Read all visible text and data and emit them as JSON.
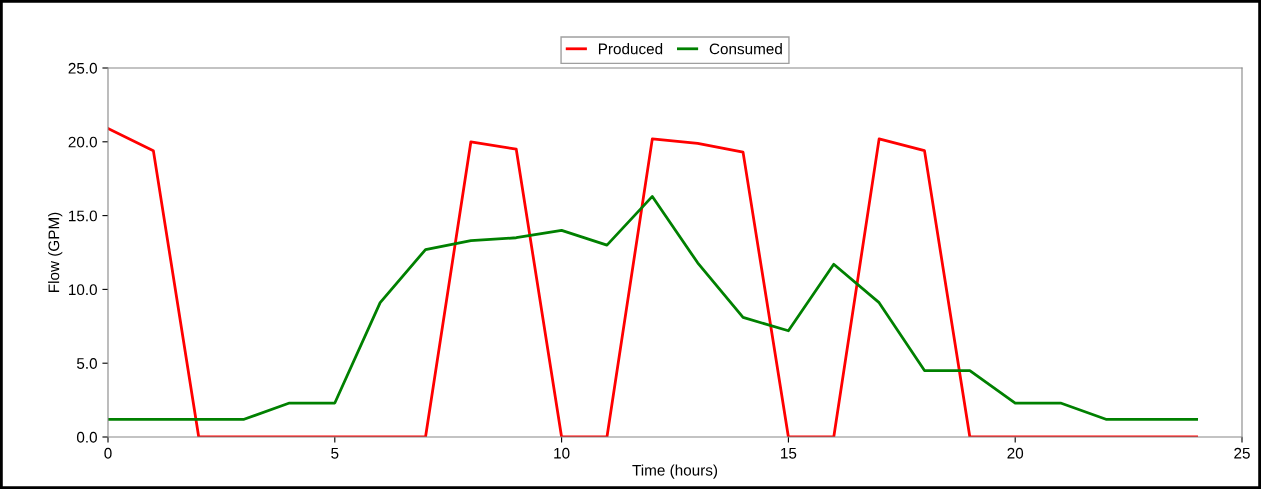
{
  "chart_data": {
    "type": "line",
    "xlabel": "Time (hours)",
    "ylabel": "Flow (GPM)",
    "x": [
      0,
      1,
      2,
      3,
      4,
      5,
      6,
      7,
      8,
      9,
      10,
      11,
      12,
      13,
      14,
      15,
      16,
      17,
      18,
      19,
      20,
      21,
      22,
      23,
      24
    ],
    "series": [
      {
        "name": "Produced",
        "color": "#ff0000",
        "values": [
          20.9,
          19.4,
          0,
          0,
          0,
          0,
          0,
          0,
          20.0,
          19.5,
          0,
          0,
          20.2,
          19.9,
          19.3,
          0,
          0,
          20.2,
          19.4,
          0,
          0,
          0,
          0,
          0,
          0
        ]
      },
      {
        "name": "Consumed",
        "color": "#008000",
        "values": [
          1.2,
          1.2,
          1.2,
          1.2,
          2.3,
          2.3,
          9.1,
          12.7,
          13.3,
          13.5,
          14.0,
          13.0,
          16.3,
          11.8,
          8.1,
          7.2,
          11.7,
          9.1,
          4.5,
          4.5,
          2.3,
          2.3,
          1.2,
          1.2,
          1.2
        ]
      }
    ],
    "xlim": [
      0,
      25
    ],
    "xticks": [
      0,
      5,
      10,
      15,
      20,
      25
    ],
    "ylim": [
      0,
      25
    ],
    "yticks": [
      {
        "value": 0,
        "label": "0.0"
      },
      {
        "value": 5,
        "label": "5.0"
      },
      {
        "value": 10,
        "label": "10.0"
      },
      {
        "value": 15,
        "label": "15.0"
      },
      {
        "value": 20,
        "label": "20.0"
      },
      {
        "value": 25,
        "label": "25.0"
      }
    ],
    "legend": "top",
    "grid": false,
    "marker": "none",
    "line_style": "solid"
  }
}
